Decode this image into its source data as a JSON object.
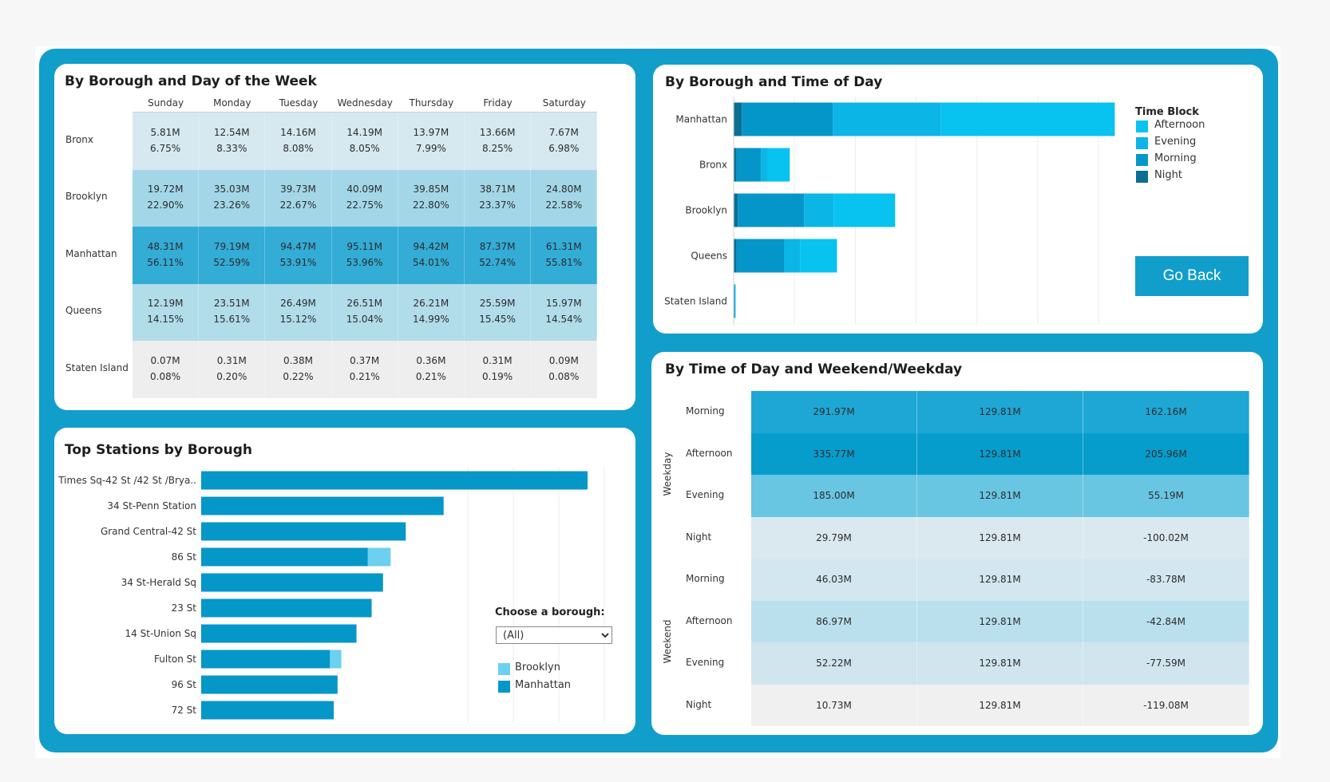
{
  "colors": {
    "board": "#129ecb",
    "afternoon": "#08c2f0",
    "evening": "#0bb5e6",
    "morning": "#0596c9",
    "night": "#0a6f93",
    "brooklyn": "#6cd0ef",
    "manhattan": "#0597c8",
    "heat_low": "#f0f0f0",
    "heat_high": "#1aa6d3"
  },
  "day_table": {
    "title": "By Borough and Day of the Week",
    "days": [
      "Sunday",
      "Monday",
      "Tuesday",
      "Wednesday",
      "Thursday",
      "Friday",
      "Saturday"
    ],
    "boroughs": [
      "Bronx",
      "Brooklyn",
      "Manhattan",
      "Queens",
      "Staten Island"
    ],
    "cells": [
      [
        [
          "5.81M",
          "6.75%"
        ],
        [
          "12.54M",
          "8.33%"
        ],
        [
          "14.16M",
          "8.08%"
        ],
        [
          "14.19M",
          "8.05%"
        ],
        [
          "13.97M",
          "7.99%"
        ],
        [
          "13.66M",
          "8.25%"
        ],
        [
          "7.67M",
          "6.98%"
        ]
      ],
      [
        [
          "19.72M",
          "22.90%"
        ],
        [
          "35.03M",
          "23.26%"
        ],
        [
          "39.73M",
          "22.67%"
        ],
        [
          "40.09M",
          "22.75%"
        ],
        [
          "39.85M",
          "22.80%"
        ],
        [
          "38.71M",
          "23.37%"
        ],
        [
          "24.80M",
          "22.58%"
        ]
      ],
      [
        [
          "48.31M",
          "56.11%"
        ],
        [
          "79.19M",
          "52.59%"
        ],
        [
          "94.47M",
          "53.91%"
        ],
        [
          "95.11M",
          "53.96%"
        ],
        [
          "94.42M",
          "54.01%"
        ],
        [
          "87.37M",
          "52.74%"
        ],
        [
          "61.31M",
          "55.81%"
        ]
      ],
      [
        [
          "12.19M",
          "14.15%"
        ],
        [
          "23.51M",
          "15.61%"
        ],
        [
          "26.49M",
          "15.12%"
        ],
        [
          "26.51M",
          "15.04%"
        ],
        [
          "26.21M",
          "14.99%"
        ],
        [
          "25.59M",
          "15.45%"
        ],
        [
          "15.97M",
          "14.54%"
        ]
      ],
      [
        [
          "0.07M",
          "0.08%"
        ],
        [
          "0.31M",
          "0.20%"
        ],
        [
          "0.38M",
          "0.22%"
        ],
        [
          "0.37M",
          "0.21%"
        ],
        [
          "0.36M",
          "0.21%"
        ],
        [
          "0.31M",
          "0.19%"
        ],
        [
          "0.09M",
          "0.08%"
        ]
      ]
    ],
    "row_shades": [
      "#d6e9f0",
      "#a3d7e8",
      "#33acd6",
      "#b1dcea",
      "#eeeeee"
    ]
  },
  "time_chart": {
    "title": "By Borough and Time of Day",
    "legend_title": "Time Block",
    "legend": [
      "Afternoon",
      "Evening",
      "Morning",
      "Night"
    ],
    "go_back_label": "Go Back"
  },
  "chart_data": [
    {
      "type": "bar",
      "orientation": "horizontal",
      "stacked": true,
      "title": "By Borough and Time of Day",
      "categories": [
        "Manhattan",
        "Bronx",
        "Brooklyn",
        "Queens",
        "Staten Island"
      ],
      "series": [
        {
          "name": "Night",
          "values": [
            12,
            4,
            6,
            4,
            0.5
          ]
        },
        {
          "name": "Morning",
          "values": [
            133,
            36,
            97,
            70,
            1.5
          ]
        },
        {
          "name": "Evening",
          "values": [
            158,
            9,
            43,
            23,
            0.5
          ]
        },
        {
          "name": "Afternoon",
          "values": [
            254,
            33,
            90,
            54,
            0.5
          ]
        }
      ],
      "xlim": [
        0,
        560
      ],
      "grid": true,
      "legend": "top-right"
    },
    {
      "type": "bar",
      "orientation": "horizontal",
      "stacked": true,
      "title": "Top Stations by Borough",
      "categories": [
        "Times Sq-42 St /42 St /Brya..",
        "34 St-Penn Station",
        "Grand Central-42 St",
        "86 St",
        "34 St-Herald Sq",
        "23 St",
        "14 St-Union Sq",
        "Fulton St",
        "96 St",
        "72 St"
      ],
      "series": [
        {
          "name": "Manhattan",
          "values": [
            102,
            64,
            54,
            44,
            48,
            45,
            41,
            34,
            36,
            35
          ]
        },
        {
          "name": "Brooklyn",
          "values": [
            0,
            0,
            0,
            6,
            0,
            0,
            0,
            3,
            0,
            0
          ]
        }
      ],
      "xlim": [
        0,
        110
      ],
      "grid": true,
      "legend": "bottom-right"
    }
  ],
  "stations": {
    "title": "Top Stations by Borough",
    "filter_label": "Choose a borough:",
    "filter_value": "(All)",
    "legend": [
      "Brooklyn",
      "Manhattan"
    ]
  },
  "weekend_table": {
    "title": "By Time of Day and Weekend/Weekday",
    "groups": [
      "Weekday",
      "Weekend"
    ],
    "rows": [
      {
        "label": "Morning",
        "values": [
          "291.97M",
          "129.81M",
          "162.16M"
        ],
        "shade": "#1ea7d4"
      },
      {
        "label": "Afternoon",
        "values": [
          "335.77M",
          "129.81M",
          "205.96M"
        ],
        "shade": "#069dcd"
      },
      {
        "label": "Evening",
        "values": [
          "185.00M",
          "129.81M",
          "55.19M"
        ],
        "shade": "#69c6e2"
      },
      {
        "label": "Night",
        "values": [
          "29.79M",
          "129.81M",
          "-100.02M"
        ],
        "shade": "#dae9ef"
      },
      {
        "label": "Morning",
        "values": [
          "46.03M",
          "129.81M",
          "-83.78M"
        ],
        "shade": "#d2e7ef"
      },
      {
        "label": "Afternoon",
        "values": [
          "86.97M",
          "129.81M",
          "-42.84M"
        ],
        "shade": "#bbe0ed"
      },
      {
        "label": "Evening",
        "values": [
          "52.22M",
          "129.81M",
          "-77.59M"
        ],
        "shade": "#d0e5ee"
      },
      {
        "label": "Night",
        "values": [
          "10.73M",
          "129.81M",
          "-119.08M"
        ],
        "shade": "#f0f0f0"
      }
    ]
  }
}
